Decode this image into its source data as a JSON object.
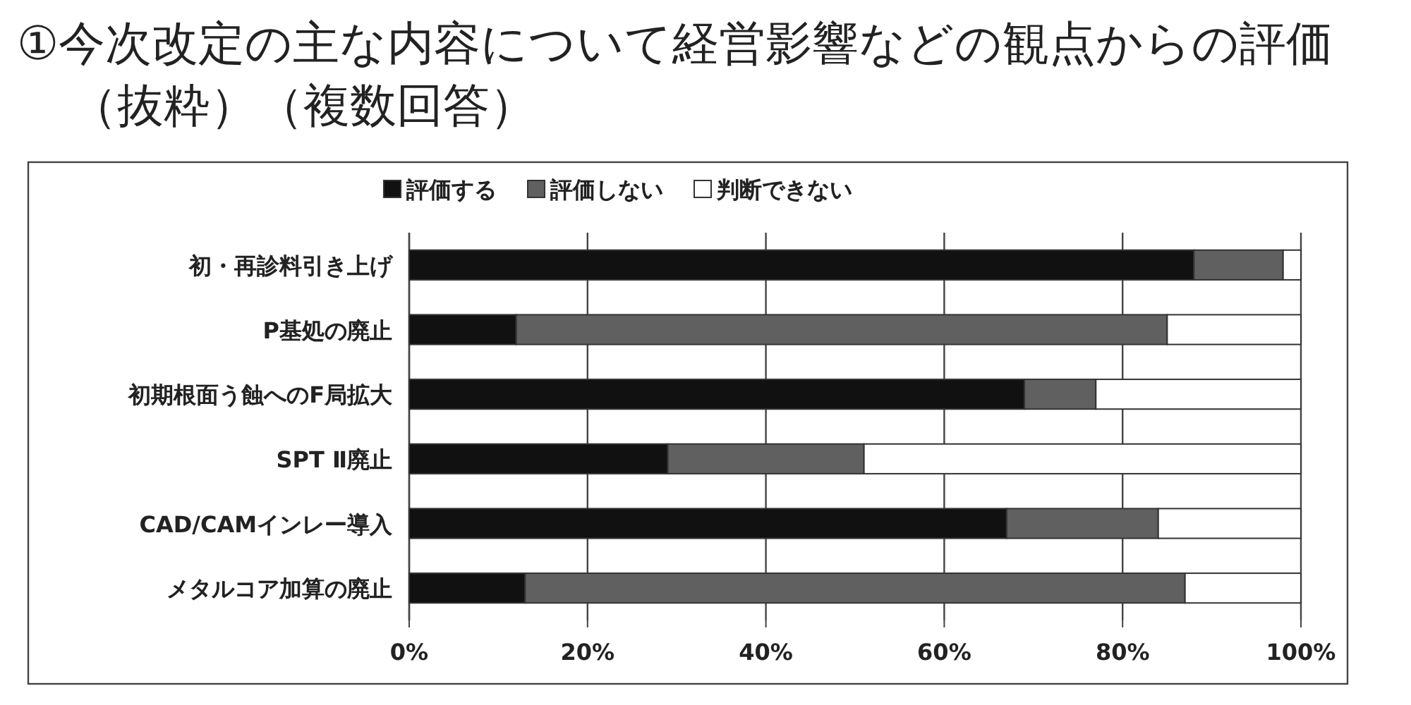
{
  "chart_data": {
    "type": "bar",
    "orientation": "horizontal",
    "stacked": true,
    "title": "①今次改定の主な内容について経営影響などの観点からの評価（抜粋）（複数回答）",
    "categories": [
      "初・再診料引き上げ",
      "P基処の廃止",
      "初期根面う蝕へのF局拡大",
      "SPT Ⅱ廃止",
      "CAD/CAMインレー導入",
      "メタルコア加算の廃止"
    ],
    "series": [
      {
        "name": "評価する",
        "color": "#111111",
        "values": [
          88,
          12,
          69,
          29,
          67,
          13
        ]
      },
      {
        "name": "評価しない",
        "color": "#606060",
        "values": [
          10,
          73,
          8,
          22,
          17,
          74
        ]
      },
      {
        "name": "判断できない",
        "color": "#ffffff",
        "values": [
          2,
          15,
          23,
          49,
          16,
          13
        ]
      }
    ],
    "xlim": [
      0,
      100
    ],
    "xticks": [
      {
        "value": 0,
        "label": "0%"
      },
      {
        "value": 20,
        "label": "20%"
      },
      {
        "value": 40,
        "label": "40%"
      },
      {
        "value": 60,
        "label": "60%"
      },
      {
        "value": 80,
        "label": "80%"
      },
      {
        "value": 100,
        "label": "100%"
      }
    ],
    "grid": "x",
    "legend": "top"
  }
}
